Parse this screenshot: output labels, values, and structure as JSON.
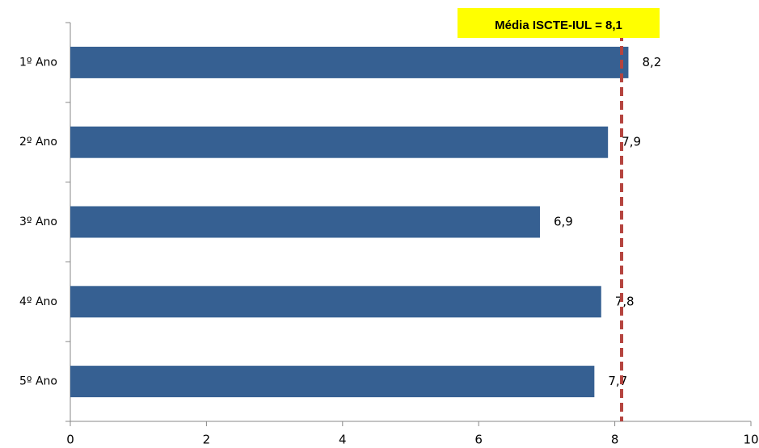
{
  "chart_data": {
    "type": "barh",
    "categories": [
      "1º Ano",
      "2º Ano",
      "3º Ano",
      "4º Ano",
      "5º Ano"
    ],
    "values": [
      8.2,
      7.9,
      6.9,
      7.8,
      7.7
    ],
    "value_labels": [
      "8,2",
      "7,9",
      "6,9",
      "7,8",
      "7,7"
    ],
    "color": "#366092",
    "xlim": [
      0,
      10
    ],
    "xticks": [
      0,
      2,
      4,
      6,
      8,
      10
    ],
    "reference_line": {
      "value": 8.1,
      "label": "Média ISCTE-IUL = 8,1",
      "color": "#b5443f",
      "label_background": "#ffff00"
    }
  }
}
